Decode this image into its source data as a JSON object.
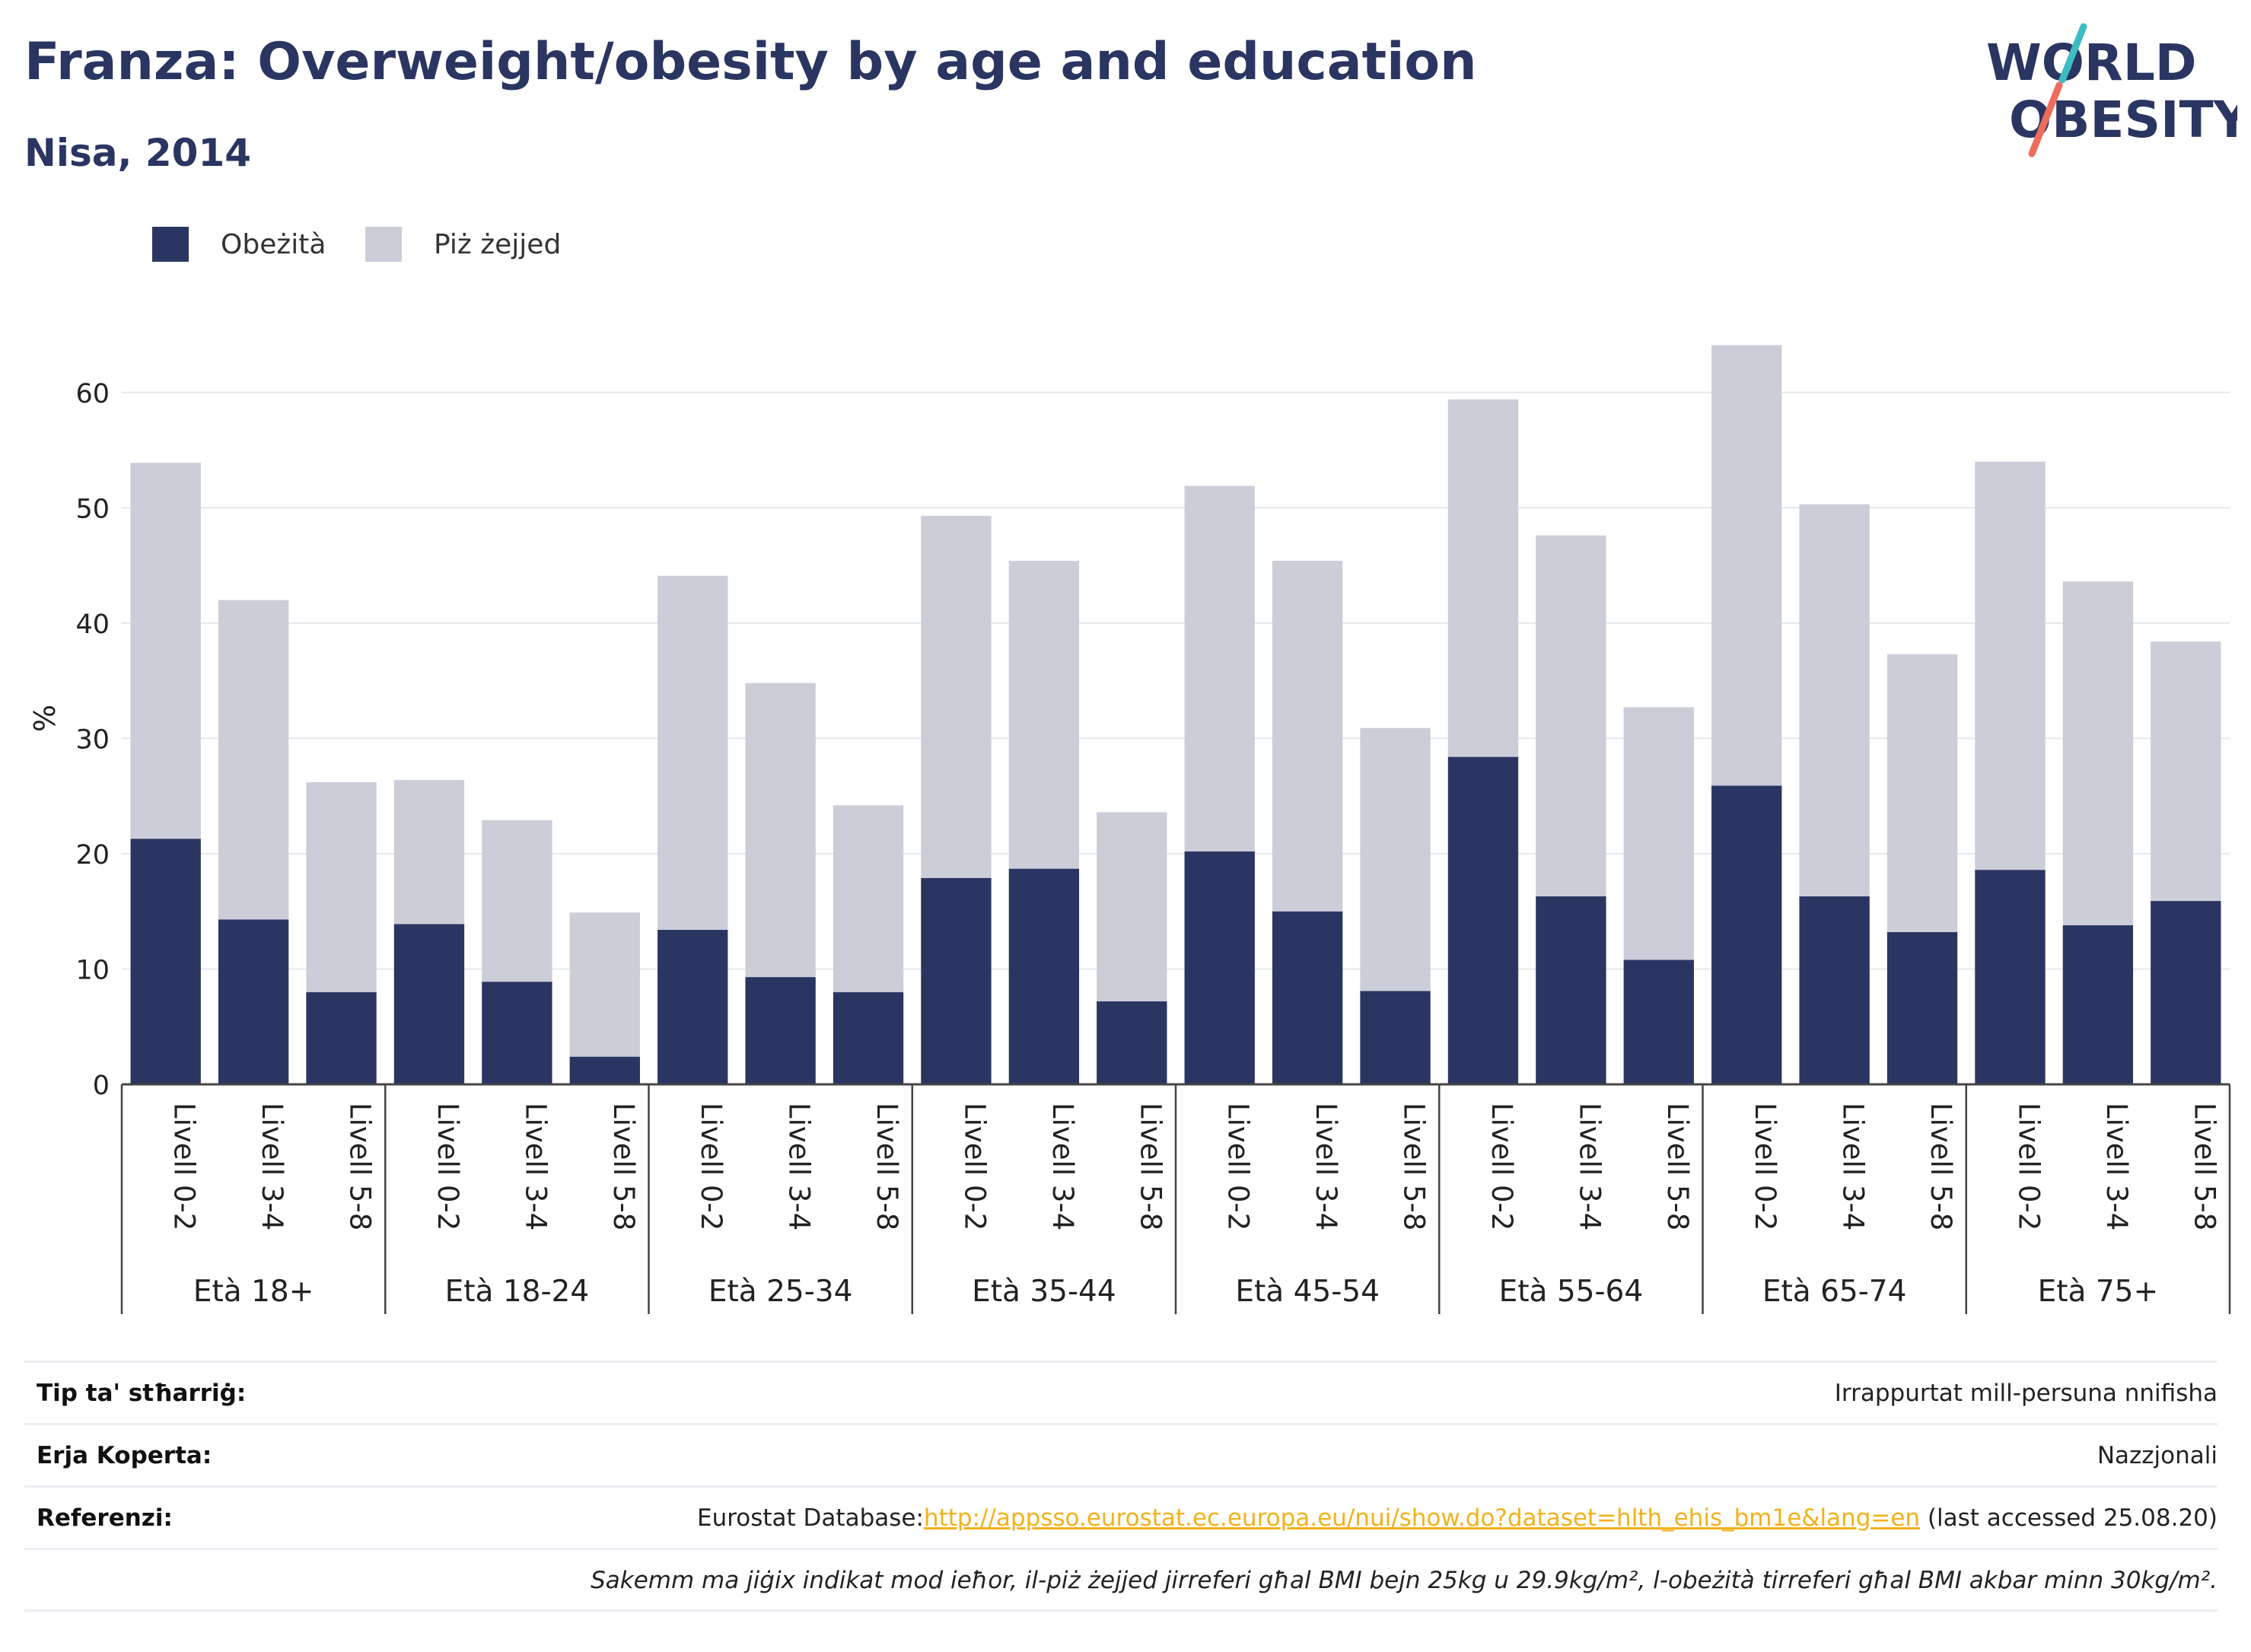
{
  "header": {
    "title": "Franza: Overweight/obesity by age and education",
    "subtitle": "Nisa, 2014"
  },
  "logo": {
    "line1": "WORLD",
    "line2": "OBESITY",
    "colors": {
      "text": "#2a3561",
      "slash_top": "#3cbcc3",
      "slash_bottom": "#ef6b5b"
    }
  },
  "legend": [
    {
      "label": "Obeżità",
      "color": "#2a3561"
    },
    {
      "label": "Piż żejjed",
      "color": "#cbcdd8"
    }
  ],
  "chart_data": {
    "type": "bar",
    "stacked": true,
    "ylabel": "%",
    "ylim": [
      0,
      65
    ],
    "yticks": [
      0,
      10,
      20,
      30,
      40,
      50,
      60
    ],
    "grid": true,
    "legend_position": "top-left",
    "groups": [
      "Età 18+",
      "Età 18-24",
      "Età 25-34",
      "Età 35-44",
      "Età 45-54",
      "Età 55-64",
      "Età 65-74",
      "Età 75+"
    ],
    "levels": [
      "Livell 0-2",
      "Livell 3-4",
      "Livell 5-8"
    ],
    "series": [
      {
        "name": "Obeżità",
        "color": "#2a3561",
        "values": [
          21.3,
          14.3,
          8.0,
          13.9,
          8.9,
          2.4,
          13.4,
          9.3,
          8.0,
          17.9,
          18.7,
          7.2,
          20.2,
          15.0,
          8.1,
          28.4,
          16.3,
          10.8,
          25.9,
          16.3,
          13.2,
          18.6,
          13.8,
          15.9
        ]
      },
      {
        "name": "Piż żejjed",
        "color": "#cbcdd8",
        "values": [
          32.6,
          27.7,
          18.2,
          12.5,
          14.0,
          12.5,
          30.7,
          25.5,
          16.2,
          31.4,
          26.7,
          16.4,
          31.7,
          30.4,
          22.8,
          31.0,
          31.3,
          21.9,
          38.2,
          34.0,
          24.1,
          35.4,
          29.8,
          22.5
        ]
      }
    ],
    "total_colors": {
      "axis": "#444444",
      "grid": "#e6e8ee"
    }
  },
  "info": {
    "type_label": "Tip ta' stħarriġ:",
    "type_value": "Irrappurtat mill-persuna nnifisha",
    "area_label": "Erja Koperta:",
    "area_value": "Nazzjonali",
    "ref_label": "Referenzi:",
    "ref_prefix": "Eurostat Database:",
    "ref_link": "http://appsso.eurostat.ec.europa.eu/nui/show.do?dataset=hlth_ehis_bm1e&lang=en",
    "ref_suffix": " (last accessed 25.08.20)",
    "note": "Sakemm ma jiġix indikat mod ieħor, il-piż żejjed jirreferi għal BMI bejn 25kg u 29.9kg/m², l-obeżità tirreferi għal BMI akbar minn 30kg/m²."
  }
}
